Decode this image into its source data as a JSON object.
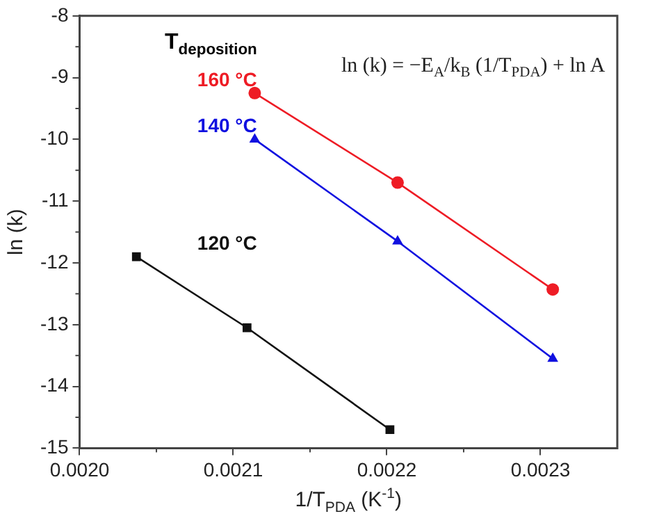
{
  "chart_data": {
    "type": "line",
    "xlabel": "1/T$_{PDA}$ (K$^{-1}$)",
    "ylabel": "ln (k)",
    "legend_title": "T$_{deposition}$",
    "legend": "top left",
    "grid": false,
    "annotations": [
      "ln (k) = −E$_{A}$/k$_{B}$ (1/T$_{PDA}$) + ln A"
    ],
    "xlim": [
      0.002,
      0.00235
    ],
    "xticks": [
      {
        "value": 0.002,
        "label": "0.0020"
      },
      {
        "value": 0.0021,
        "label": "0.0021"
      },
      {
        "value": 0.0022,
        "label": "0.0022"
      },
      {
        "value": 0.0023,
        "label": "0.0023"
      }
    ],
    "ylim": [
      -15,
      -8
    ],
    "yticks": [
      -15,
      -14,
      -13,
      -12,
      -11,
      -10,
      -9,
      -8
    ],
    "series": [
      {
        "name": "160 °C",
        "color": "#ee1c25",
        "marker": "circle",
        "x": [
          0.002114,
          0.002207,
          0.002308
        ],
        "values": [
          -9.25,
          -10.7,
          -12.43
        ]
      },
      {
        "name": "140 °C",
        "color": "#1010e0",
        "marker": "triangle",
        "x": [
          0.002114,
          0.002207,
          0.002308
        ],
        "values": [
          -10.0,
          -11.65,
          -13.55
        ]
      },
      {
        "name": "120 °C",
        "color": "#111111",
        "marker": "square",
        "x": [
          0.002037,
          0.002109,
          0.002202
        ],
        "values": [
          -11.9,
          -13.05,
          -14.7
        ]
      }
    ]
  }
}
